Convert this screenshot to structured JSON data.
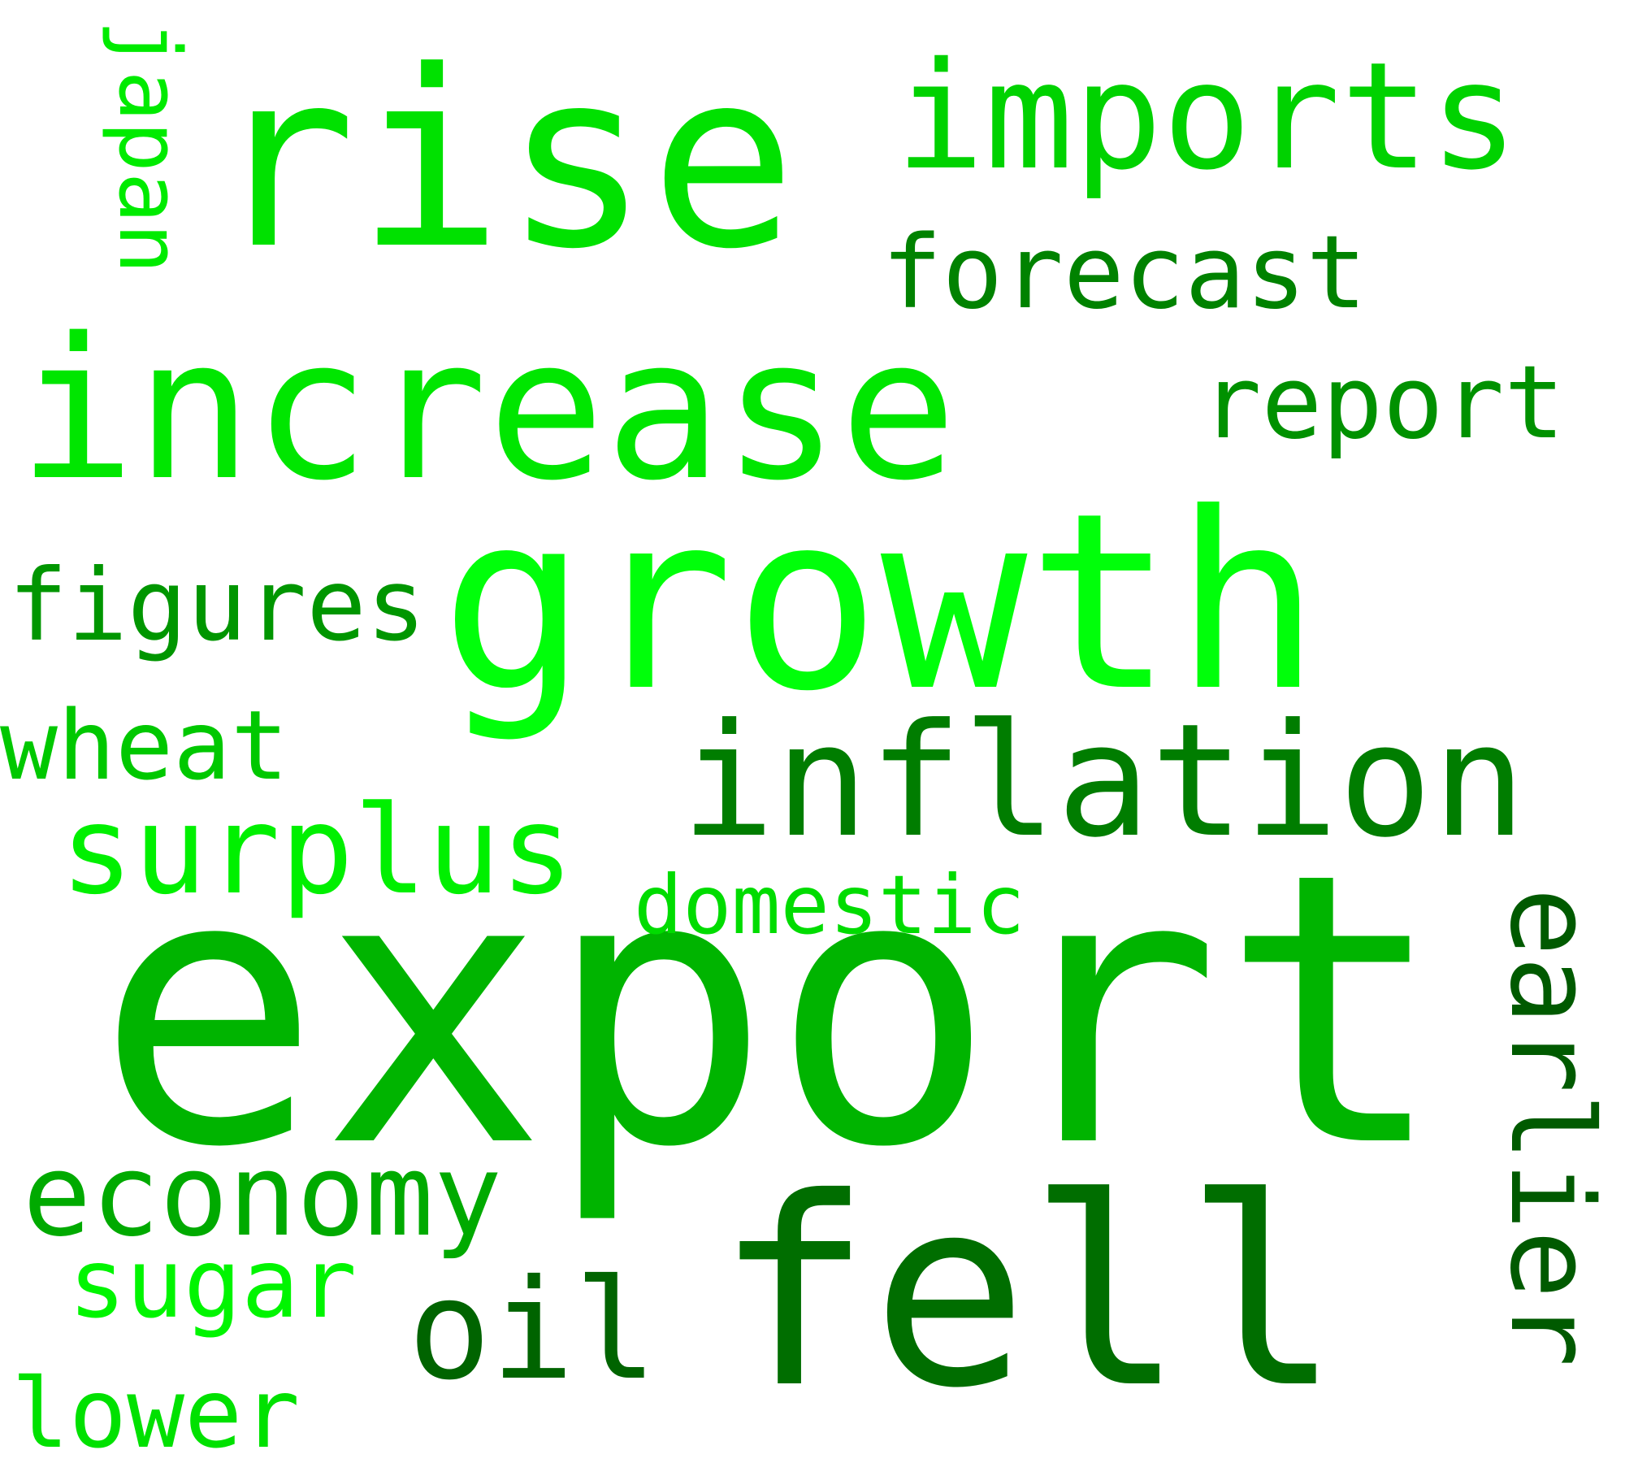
{
  "words": [
    {
      "text": "export",
      "color": "#00b400"
    },
    {
      "text": "growth",
      "color": "#00ff0a"
    },
    {
      "text": "increase",
      "color": "#00e600"
    },
    {
      "text": "rise",
      "color": "#00e100"
    },
    {
      "text": "fell",
      "color": "#006e00"
    },
    {
      "text": "inflation",
      "color": "#007d00"
    },
    {
      "text": "imports",
      "color": "#00d200"
    },
    {
      "text": "surplus",
      "color": "#00f000"
    },
    {
      "text": "earlier",
      "color": "#005a00"
    },
    {
      "text": "oil",
      "color": "#006400"
    },
    {
      "text": "economy",
      "color": "#00aa00"
    },
    {
      "text": "forecast",
      "color": "#008200"
    },
    {
      "text": "report",
      "color": "#009100"
    },
    {
      "text": "figures",
      "color": "#009600"
    },
    {
      "text": "wheat",
      "color": "#00c800"
    },
    {
      "text": "sugar",
      "color": "#00f500"
    },
    {
      "text": "japan",
      "color": "#00eb00"
    },
    {
      "text": "domestic",
      "color": "#00dc00"
    },
    {
      "text": "lower",
      "color": "#00e100"
    }
  ]
}
